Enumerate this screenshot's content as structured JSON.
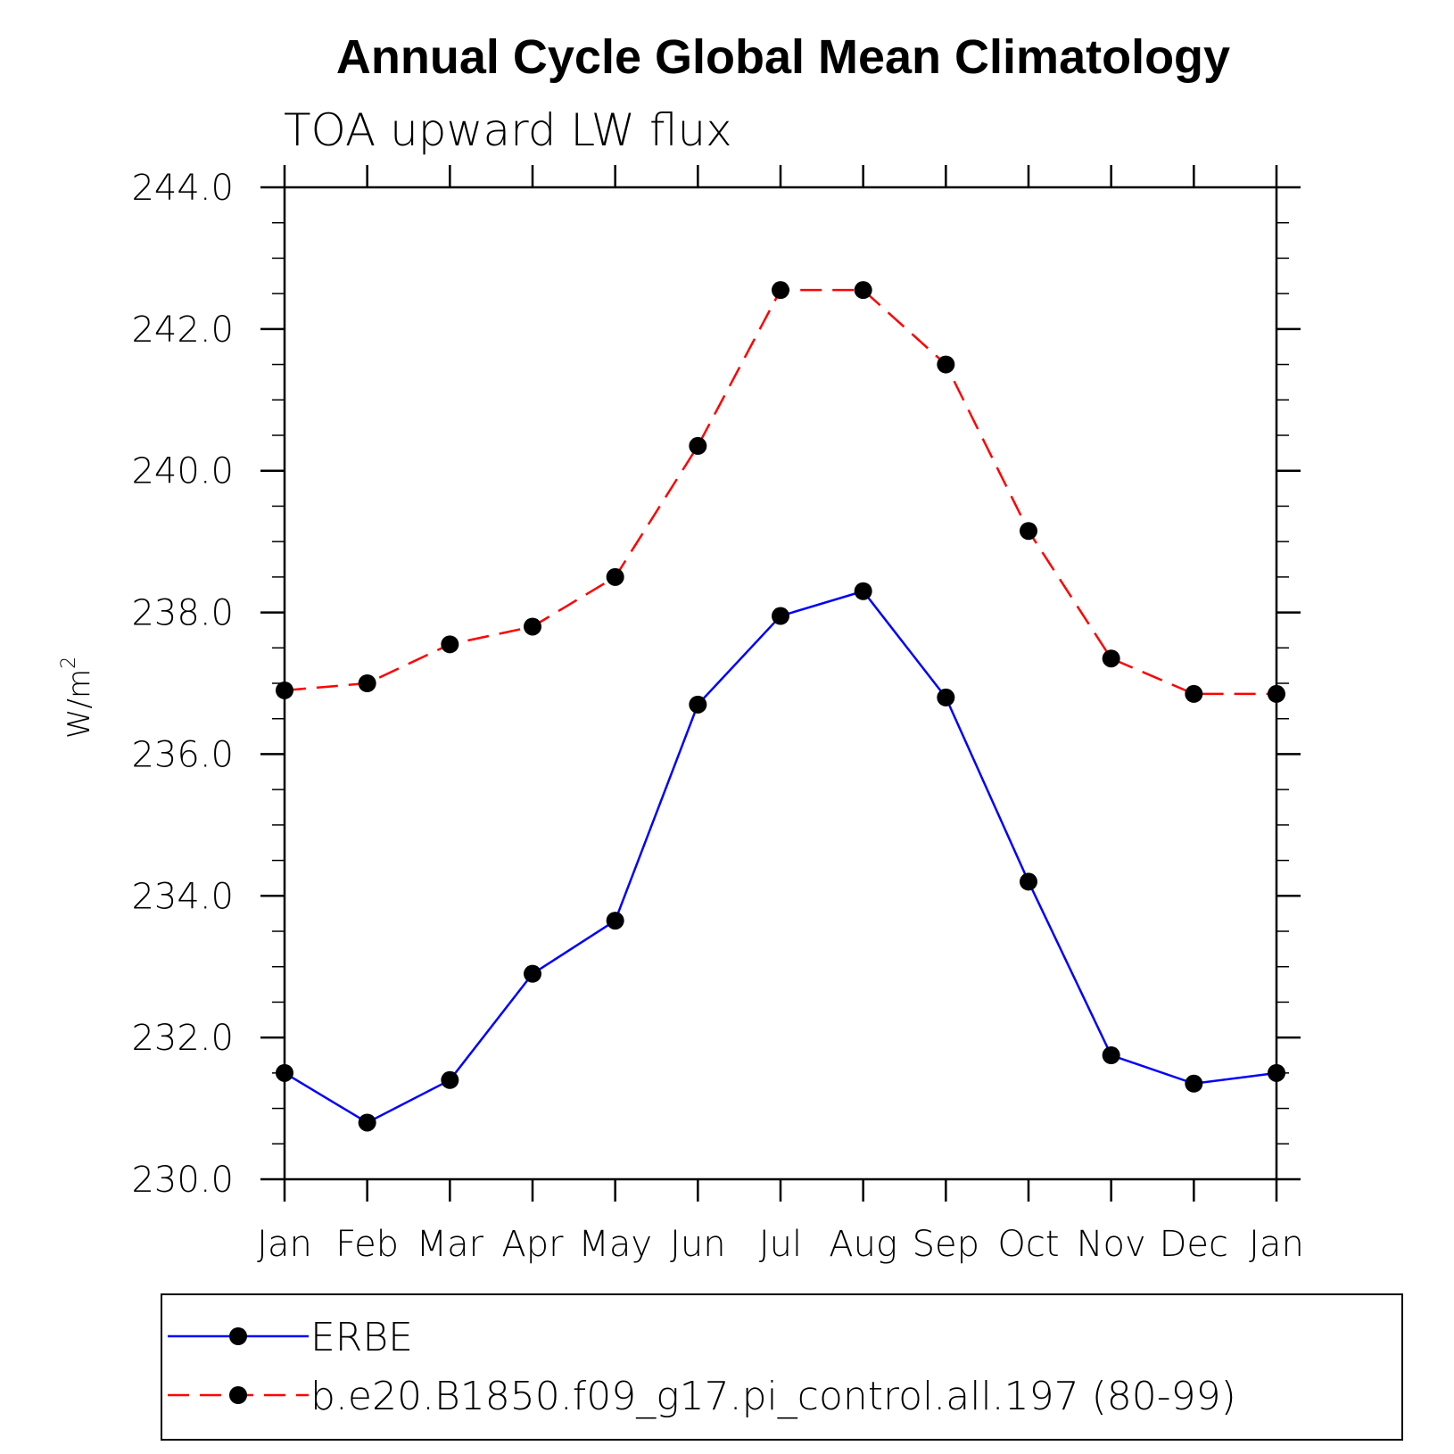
{
  "chart_data": {
    "type": "line",
    "title": "Annual Cycle Global Mean Climatology",
    "subtitle": "TOA upward LW flux",
    "ylabel": "W/m",
    "ylabel_superscript": "2",
    "xlabel": "",
    "categories": [
      "Jan",
      "Feb",
      "Mar",
      "Apr",
      "May",
      "Jun",
      "Jul",
      "Aug",
      "Sep",
      "Oct",
      "Nov",
      "Dec",
      "Jan"
    ],
    "ylim": [
      230.0,
      244.0
    ],
    "yticks": [
      "230.0",
      "232.0",
      "234.0",
      "236.0",
      "238.0",
      "240.0",
      "242.0",
      "244.0"
    ],
    "grid": false,
    "legend_position": "bottom",
    "series": [
      {
        "name": "ERBE",
        "color": "#0000ff",
        "dash": "solid",
        "values": [
          231.5,
          230.8,
          231.4,
          232.9,
          233.65,
          236.7,
          237.95,
          238.3,
          236.8,
          234.2,
          231.75,
          231.35,
          231.5
        ]
      },
      {
        "name": "b.e20.B1850.f09_g17.pi_control.all.197 (80-99)",
        "color": "#ff0000",
        "dash": "dashed",
        "values": [
          236.9,
          237.0,
          237.55,
          237.8,
          238.5,
          240.35,
          242.55,
          242.55,
          241.5,
          239.15,
          237.35,
          236.85,
          236.85
        ]
      }
    ]
  }
}
